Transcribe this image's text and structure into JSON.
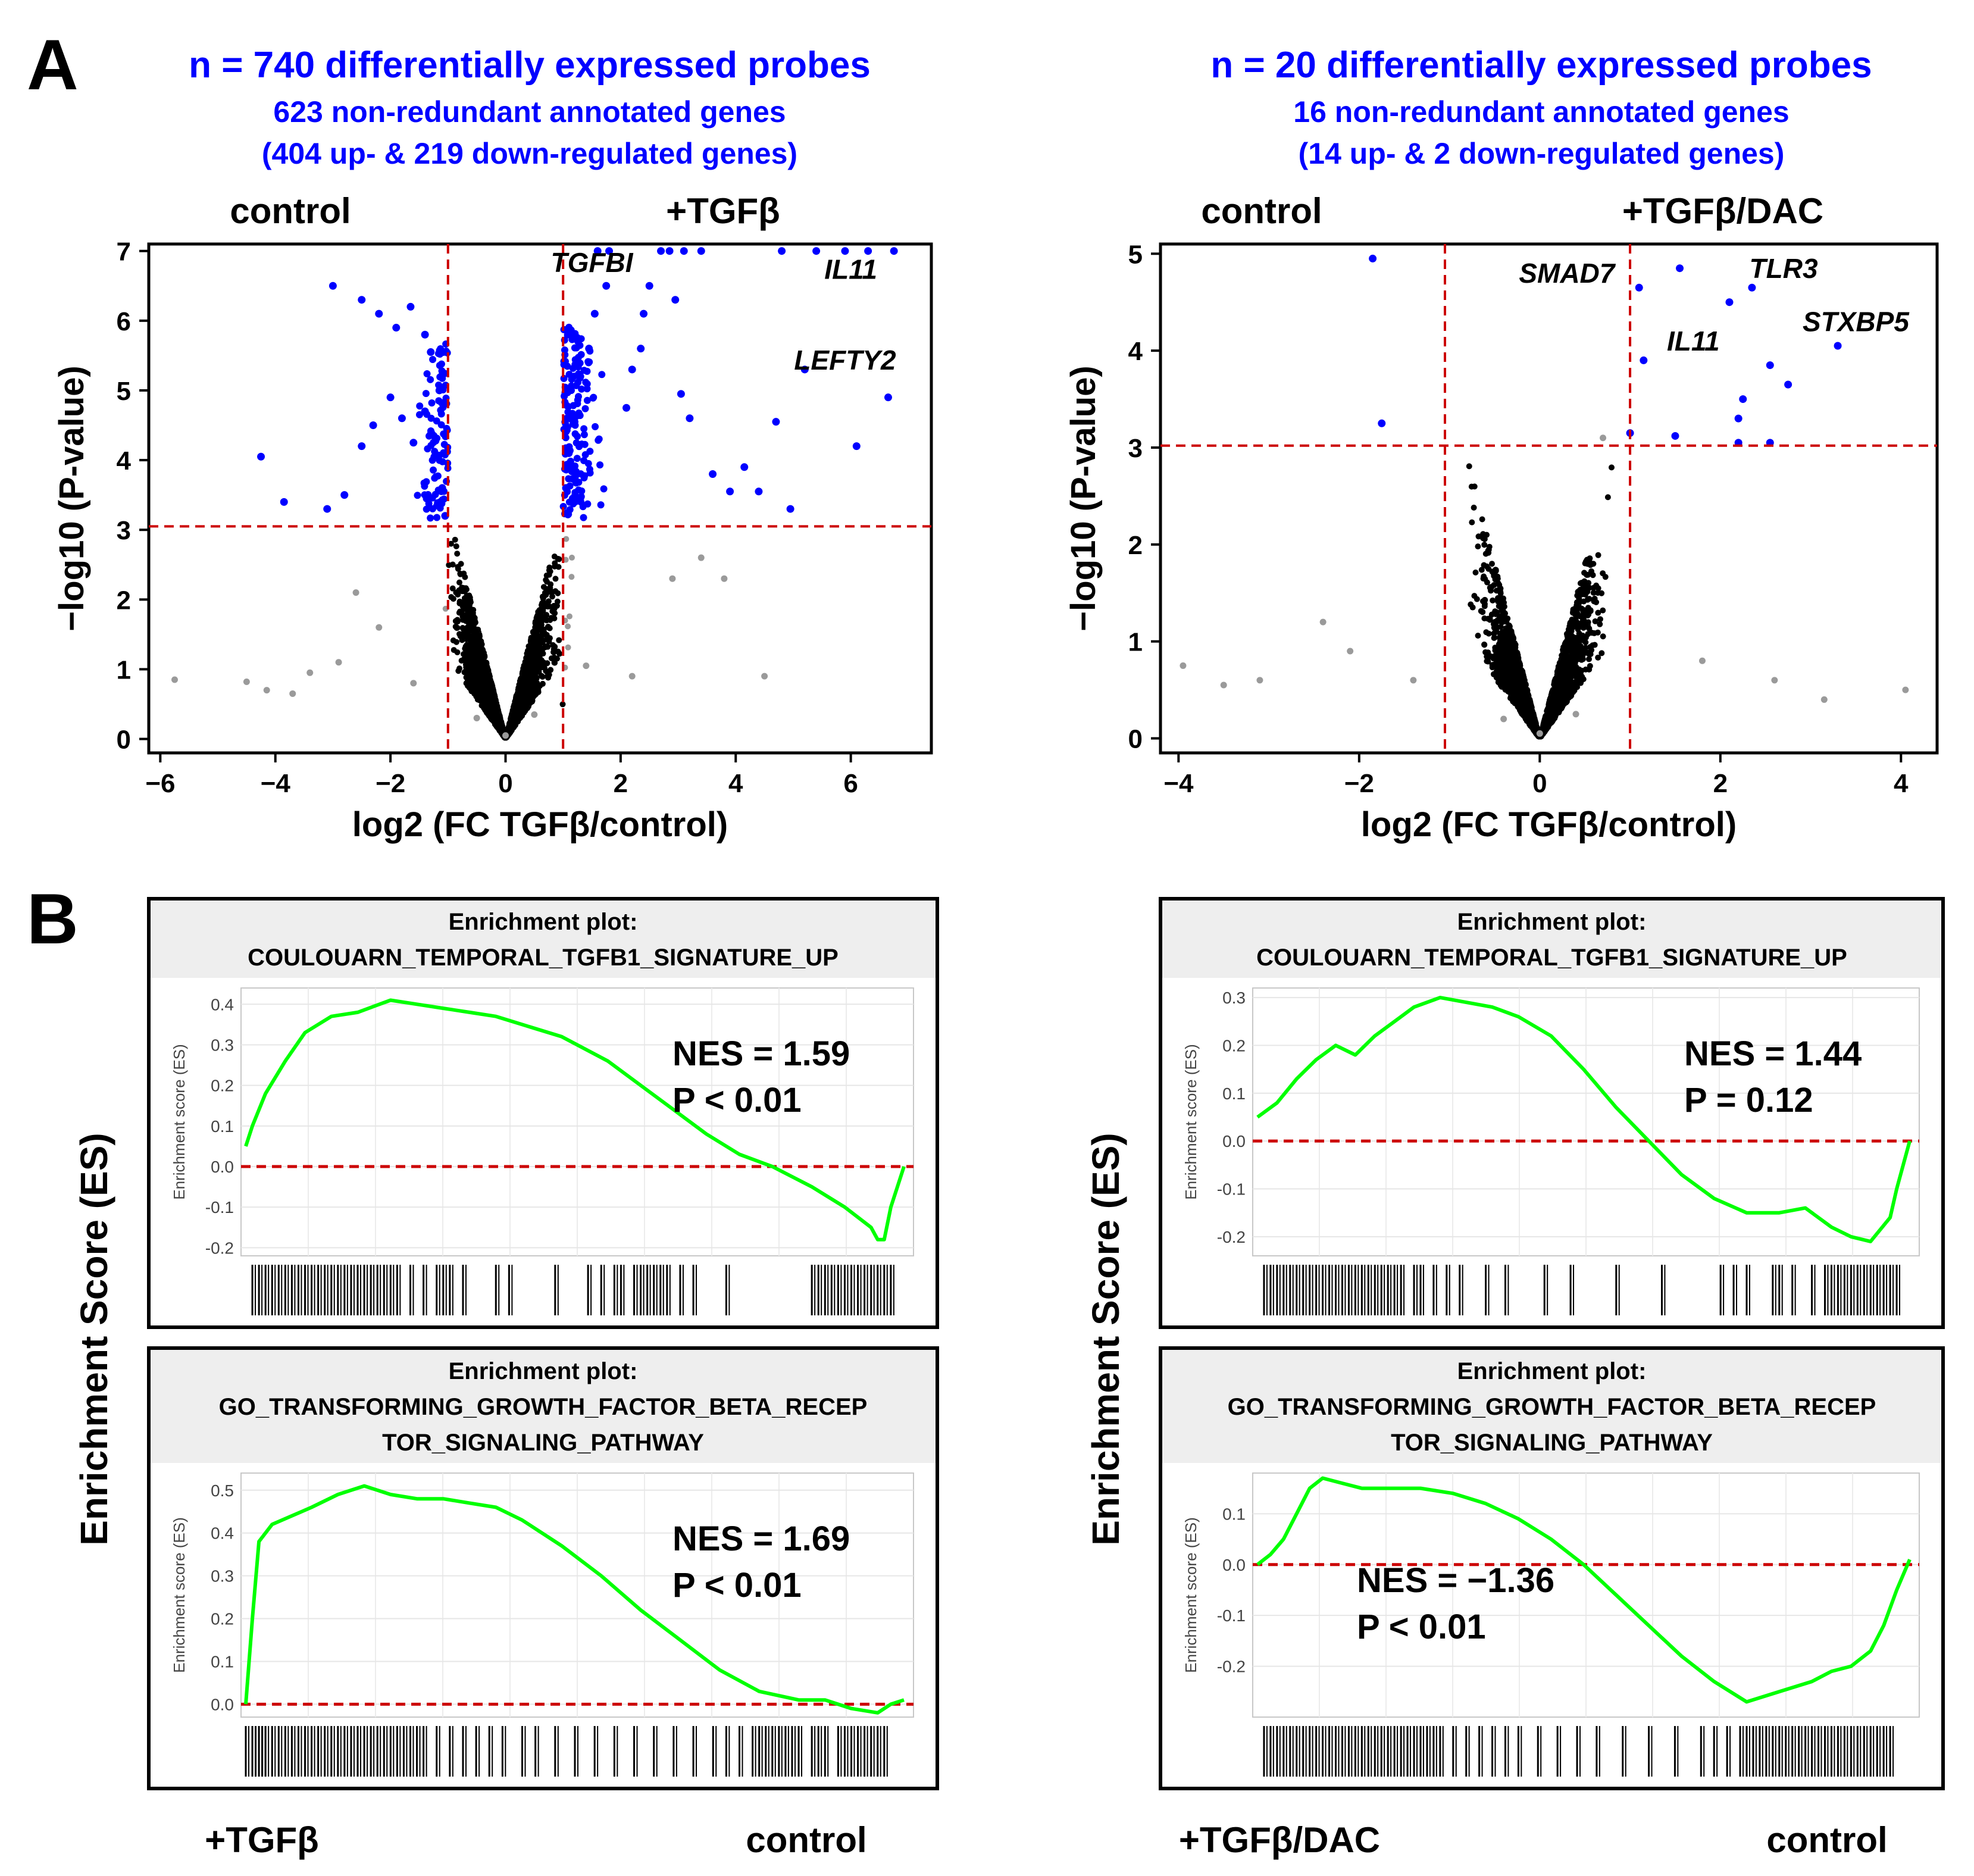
{
  "panel_labels": {
    "a": "A",
    "b": "B"
  },
  "colors": {
    "up": "#0000ff",
    "threshold": "#cc0000",
    "gsea_line": "#00ff00",
    "gray_point": "#9a9a9a",
    "black": "#000000",
    "header_bg": "#eeeeee",
    "title_blue": "#0000ff"
  },
  "volcano_left": {
    "title": "n = 740 differentially expressed probes",
    "subtitle1": "623 non-redundant annotated genes",
    "subtitle2": "(404 up- & 219 down-regulated genes)",
    "label_left": "control",
    "label_right": "+TGFβ",
    "genes": [
      {
        "name": "TGFBI",
        "x": 1.5,
        "y": 6.7
      },
      {
        "name": "IL11",
        "x": 6.0,
        "y": 6.6
      },
      {
        "name": "LEFTY2",
        "x": 5.9,
        "y": 5.3
      }
    ]
  },
  "volcano_right": {
    "title": "n = 20 differentially expressed probes",
    "subtitle1": "16 non-redundant annotated genes",
    "subtitle2": "(14 up- & 2 down-regulated genes)",
    "label_left": "control",
    "label_right": "+TGFβ/DAC",
    "genes": [
      {
        "name": "SMAD7",
        "x": 0.3,
        "y": 4.7
      },
      {
        "name": "IL11",
        "x": 1.7,
        "y": 4.0
      },
      {
        "name": "TLR3",
        "x": 2.7,
        "y": 4.75
      },
      {
        "name": "STXBP5",
        "x": 3.5,
        "y": 4.2
      }
    ]
  },
  "gsea_left_label": "Enrichment Score (ES)",
  "gsea_right_label": "Enrichment Score (ES)",
  "bottom_labels": {
    "left_a": "+TGFβ",
    "left_b": "control",
    "right_a": "+TGFβ/DAC",
    "right_b": "control"
  },
  "chart_data": [
    {
      "type": "scatter",
      "title": "n = 740 differentially expressed probes",
      "xlabel": "log2 (FC TGFβ/control)",
      "ylabel": "−log10 (P-value)",
      "xlim": [
        -6.2,
        7.4
      ],
      "ylim": [
        -0.2,
        7.1
      ],
      "xticks": [
        -6,
        -4,
        -2,
        0,
        2,
        4,
        6
      ],
      "yticks": [
        0,
        1,
        2,
        3,
        4,
        5,
        6,
        7
      ],
      "vlines": [
        -1,
        1
      ],
      "hline": 3.05,
      "series": [
        {
          "name": "up-regulated",
          "color": "blue",
          "points": [
            [
              6.75,
              7.0
            ],
            [
              6.3,
              7.0
            ],
            [
              5.9,
              7.0
            ],
            [
              5.4,
              7.0
            ],
            [
              4.8,
              7.0
            ],
            [
              3.4,
              7.0
            ],
            [
              3.1,
              7.0
            ],
            [
              2.85,
              7.0
            ],
            [
              2.7,
              7.0
            ],
            [
              1.8,
              7.0
            ],
            [
              1.6,
              7.0
            ],
            [
              6.65,
              4.9
            ],
            [
              6.1,
              4.2
            ],
            [
              5.2,
              5.3
            ],
            [
              4.7,
              4.55
            ],
            [
              4.15,
              3.9
            ],
            [
              3.9,
              3.55
            ],
            [
              4.95,
              3.3
            ],
            [
              4.4,
              3.55
            ],
            [
              3.6,
              3.8
            ],
            [
              3.2,
              4.6
            ],
            [
              2.95,
              6.3
            ],
            [
              3.05,
              4.95
            ],
            [
              2.5,
              6.5
            ],
            [
              2.4,
              6.1
            ],
            [
              2.35,
              5.6
            ],
            [
              2.2,
              5.3
            ],
            [
              2.1,
              4.75
            ],
            [
              1.75,
              6.5
            ],
            [
              1.55,
              6.1
            ],
            [
              1.45,
              5.6
            ],
            [
              1.3,
              5.2
            ],
            [
              1.2,
              4.55
            ],
            [
              1.1,
              4.1
            ],
            [
              1.05,
              3.6
            ]
          ]
        },
        {
          "name": "down-regulated",
          "color": "blue",
          "points": [
            [
              -3.0,
              6.5
            ],
            [
              -2.5,
              6.3
            ],
            [
              -2.2,
              6.1
            ],
            [
              -1.9,
              5.9
            ],
            [
              -1.65,
              6.2
            ],
            [
              -1.4,
              5.8
            ],
            [
              -1.3,
              5.55
            ],
            [
              -1.15,
              5.0
            ],
            [
              -4.25,
              4.05
            ],
            [
              -3.85,
              3.4
            ],
            [
              -3.1,
              3.3
            ],
            [
              -2.8,
              3.5
            ],
            [
              -2.5,
              4.2
            ],
            [
              -2.3,
              4.5
            ],
            [
              -2.0,
              4.9
            ],
            [
              -1.8,
              4.6
            ],
            [
              -1.6,
              4.25
            ],
            [
              -1.4,
              4.7
            ],
            [
              -1.25,
              4.35
            ],
            [
              -1.1,
              3.6
            ],
            [
              -1.05,
              3.2
            ]
          ]
        },
        {
          "name": "not significant",
          "color": "black",
          "points": [
            [
              -5.75,
              0.85
            ],
            [
              -4.5,
              0.82
            ],
            [
              -4.15,
              0.7
            ],
            [
              -3.7,
              0.65
            ],
            [
              -3.4,
              0.95
            ],
            [
              -2.9,
              1.1
            ],
            [
              -2.6,
              2.1
            ],
            [
              -2.2,
              1.6
            ],
            [
              -1.6,
              0.8
            ],
            [
              -0.5,
              0.3
            ],
            [
              0.0,
              0.05
            ],
            [
              0.5,
              0.35
            ],
            [
              1.4,
              1.05
            ],
            [
              2.2,
              0.9
            ],
            [
              2.9,
              2.3
            ],
            [
              3.4,
              2.6
            ],
            [
              3.8,
              2.3
            ],
            [
              4.5,
              0.9
            ]
          ]
        }
      ]
    },
    {
      "type": "scatter",
      "title": "n = 20 differentially expressed probes",
      "xlabel": "log2 (FC TGFβ/control)",
      "ylabel": "−log10 (P-value)",
      "xlim": [
        -4.2,
        4.4
      ],
      "ylim": [
        -0.15,
        5.1
      ],
      "xticks": [
        -4,
        -2,
        0,
        2,
        4
      ],
      "yticks": [
        0,
        1,
        2,
        3,
        4,
        5
      ],
      "vlines": [
        -1.05,
        1.0
      ],
      "hline": 3.02,
      "series": [
        {
          "name": "up-regulated",
          "color": "blue",
          "points": [
            [
              1.1,
              4.65
            ],
            [
              1.55,
              4.85
            ],
            [
              2.35,
              4.65
            ],
            [
              2.1,
              4.5
            ],
            [
              3.3,
              4.05
            ],
            [
              1.15,
              3.9
            ],
            [
              2.55,
              3.85
            ],
            [
              2.75,
              3.65
            ],
            [
              2.25,
              3.5
            ],
            [
              2.2,
              3.3
            ],
            [
              1.0,
              3.15
            ],
            [
              2.2,
              3.05
            ],
            [
              2.55,
              3.05
            ],
            [
              1.5,
              3.12
            ]
          ]
        },
        {
          "name": "down-regulated",
          "color": "blue",
          "points": [
            [
              -1.85,
              4.95
            ],
            [
              -1.75,
              3.25
            ]
          ]
        },
        {
          "name": "not significant",
          "color": "black",
          "points": [
            [
              -3.95,
              0.75
            ],
            [
              -3.5,
              0.55
            ],
            [
              -3.1,
              0.6
            ],
            [
              -2.4,
              1.2
            ],
            [
              -2.1,
              0.9
            ],
            [
              -1.4,
              0.6
            ],
            [
              -0.4,
              0.2
            ],
            [
              0.0,
              0.05
            ],
            [
              0.4,
              0.25
            ],
            [
              0.7,
              3.1
            ],
            [
              1.8,
              0.8
            ],
            [
              2.6,
              0.6
            ],
            [
              3.15,
              0.4
            ],
            [
              4.05,
              0.5
            ]
          ]
        }
      ]
    },
    {
      "type": "line",
      "title": "Enrichment plot:",
      "title2": "COULOUARN_TEMPORAL_TGFB1_SIGNATURE_UP",
      "ylabel": "Enrichment score (ES)",
      "nes": "NES = 1.59",
      "pval": "P < 0.01",
      "ylim": [
        -0.22,
        0.44
      ],
      "yticks": [
        -0.2,
        -0.1,
        0.0,
        0.1,
        0.2,
        0.3,
        0.4
      ],
      "x": [
        0,
        1,
        3,
        6,
        9,
        13,
        17,
        22,
        26,
        30,
        34,
        38,
        42,
        48,
        55,
        60,
        65,
        70,
        75,
        80,
        86,
        91,
        95,
        96,
        97,
        98,
        100
      ],
      "values": [
        0.05,
        0.1,
        0.18,
        0.26,
        0.33,
        0.37,
        0.38,
        0.41,
        0.4,
        0.39,
        0.38,
        0.37,
        0.35,
        0.32,
        0.26,
        0.2,
        0.14,
        0.08,
        0.03,
        0.0,
        -0.05,
        -0.1,
        -0.15,
        -0.18,
        -0.18,
        -0.1,
        0.0
      ],
      "hits": [
        1,
        2,
        3,
        4,
        5,
        6,
        7,
        8,
        9,
        10,
        11,
        12,
        13,
        14,
        15,
        16,
        17,
        18,
        19,
        20,
        21,
        22,
        23,
        25,
        27,
        29,
        30,
        31,
        33,
        38,
        40,
        47,
        52,
        54,
        56,
        57,
        59,
        60,
        61,
        62,
        63,
        64,
        66,
        68,
        73,
        86,
        87,
        88,
        89,
        90,
        91,
        92,
        93,
        94,
        95,
        96,
        97,
        98
      ]
    },
    {
      "type": "line",
      "title": "Enrichment plot:",
      "title2": "COULOUARN_TEMPORAL_TGFB1_SIGNATURE_UP",
      "ylabel": "Enrichment score (ES)",
      "nes": "NES = 1.44",
      "pval": "P = 0.12",
      "ylim": [
        -0.24,
        0.32
      ],
      "yticks": [
        -0.2,
        -0.1,
        0.0,
        0.1,
        0.2,
        0.3
      ],
      "x": [
        0,
        3,
        6,
        9,
        12,
        15,
        18,
        21,
        24,
        28,
        32,
        36,
        40,
        45,
        50,
        55,
        60,
        65,
        70,
        75,
        80,
        84,
        88,
        91,
        94,
        97,
        98,
        100
      ],
      "values": [
        0.05,
        0.08,
        0.13,
        0.17,
        0.2,
        0.18,
        0.22,
        0.25,
        0.28,
        0.3,
        0.29,
        0.28,
        0.26,
        0.22,
        0.15,
        0.07,
        0.0,
        -0.07,
        -0.12,
        -0.15,
        -0.15,
        -0.14,
        -0.18,
        -0.2,
        -0.21,
        -0.16,
        -0.1,
        0.0
      ],
      "hits": [
        1,
        2,
        3,
        4,
        5,
        6,
        7,
        8,
        9,
        10,
        11,
        12,
        13,
        14,
        15,
        16,
        17,
        18,
        19,
        20,
        21,
        22,
        24,
        25,
        27,
        29,
        31,
        35,
        38,
        44,
        48,
        55,
        62,
        71,
        73,
        75,
        79,
        80,
        82,
        85,
        87,
        88,
        89,
        90,
        91,
        92,
        93,
        94,
        95,
        96,
        97,
        98
      ]
    },
    {
      "type": "line",
      "title": "Enrichment plot:",
      "title2": "GO_TRANSFORMING_GROWTH_FACTOR_BETA_RECEP",
      "title3": "TOR_SIGNALING_PATHWAY",
      "ylabel": "Enrichment score (ES)",
      "nes": "NES = 1.69",
      "pval": "P < 0.01",
      "ylim": [
        -0.03,
        0.54
      ],
      "yticks": [
        0.0,
        0.1,
        0.2,
        0.3,
        0.4,
        0.5
      ],
      "x": [
        0,
        1,
        2,
        4,
        7,
        10,
        14,
        18,
        22,
        26,
        30,
        34,
        38,
        42,
        48,
        54,
        60,
        66,
        72,
        78,
        84,
        88,
        92,
        96,
        98,
        100
      ],
      "values": [
        0.0,
        0.2,
        0.38,
        0.42,
        0.44,
        0.46,
        0.49,
        0.51,
        0.49,
        0.48,
        0.48,
        0.47,
        0.46,
        0.43,
        0.37,
        0.3,
        0.22,
        0.15,
        0.08,
        0.03,
        0.01,
        0.01,
        -0.01,
        -0.02,
        0.0,
        0.01
      ],
      "hits": [
        0,
        1,
        1.5,
        2,
        2.5,
        3,
        4,
        5,
        6,
        7,
        8,
        9,
        10,
        11,
        12,
        13,
        14,
        15,
        16,
        17,
        18,
        19,
        20,
        21,
        22,
        23,
        24,
        25,
        26,
        27,
        29,
        31,
        33,
        35,
        37,
        39,
        42,
        44,
        47,
        50,
        53,
        56,
        59,
        62,
        65,
        68,
        71,
        73,
        75,
        77,
        78,
        79,
        80,
        81,
        82,
        83,
        84,
        86,
        87,
        88,
        90,
        91,
        92,
        93,
        94,
        95,
        96,
        97
      ]
    },
    {
      "type": "line",
      "title": "Enrichment plot:",
      "title2": "GO_TRANSFORMING_GROWTH_FACTOR_BETA_RECEP",
      "title3": "TOR_SIGNALING_PATHWAY",
      "ylabel": "Enrichment score (ES)",
      "nes": "NES = −1.36",
      "pval": "P < 0.01",
      "ylim": [
        -0.3,
        0.18
      ],
      "yticks": [
        -0.2,
        -0.1,
        0.0,
        0.1
      ],
      "x": [
        0,
        2,
        4,
        6,
        8,
        10,
        13,
        16,
        20,
        25,
        30,
        35,
        40,
        45,
        50,
        55,
        60,
        65,
        70,
        75,
        80,
        85,
        88,
        91,
        94,
        96,
        98,
        100
      ],
      "values": [
        0.0,
        0.02,
        0.05,
        0.1,
        0.15,
        0.17,
        0.16,
        0.15,
        0.15,
        0.15,
        0.14,
        0.12,
        0.09,
        0.05,
        0.0,
        -0.06,
        -0.12,
        -0.18,
        -0.23,
        -0.27,
        -0.25,
        -0.23,
        -0.21,
        -0.2,
        -0.17,
        -0.12,
        -0.05,
        0.01
      ],
      "hits": [
        1,
        2,
        3,
        4,
        5,
        6,
        7,
        8,
        9,
        10,
        11,
        12,
        13,
        14,
        15,
        16,
        17,
        18,
        19,
        20,
        21,
        22,
        23,
        24,
        25,
        26,
        27,
        28,
        30,
        32,
        34,
        36,
        38,
        40,
        43,
        46,
        49,
        52,
        56,
        60,
        64,
        68,
        70,
        72,
        74,
        75,
        76,
        77,
        78,
        79,
        80,
        81,
        82,
        83,
        84,
        85,
        86,
        87,
        88,
        89,
        90,
        91,
        92,
        93,
        94,
        95,
        96,
        97
      ]
    }
  ]
}
